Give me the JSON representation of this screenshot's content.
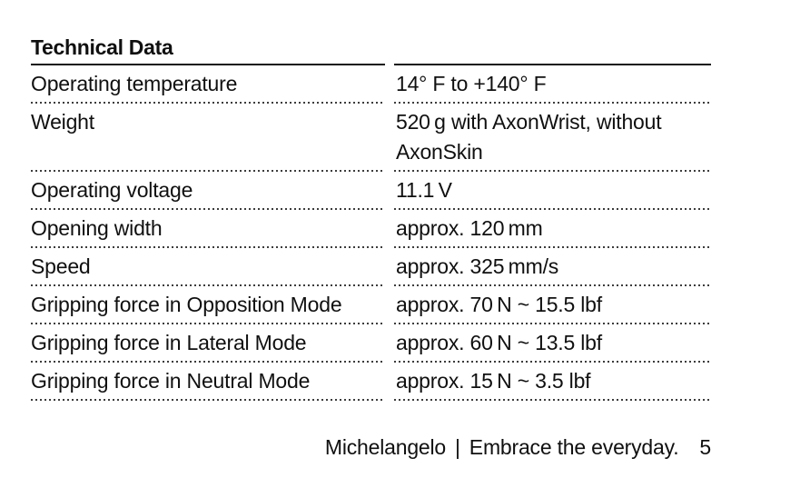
{
  "page": {
    "title": "Technical Data",
    "table": {
      "rows": [
        {
          "label": "Operating temperature",
          "value": "14° F to +140° F"
        },
        {
          "label": "Weight",
          "value": "520 g with AxonWrist, without AxonSkin"
        },
        {
          "label": "Operating voltage",
          "value": "11.1 V"
        },
        {
          "label": "Opening width",
          "value": "approx. 120 mm"
        },
        {
          "label": "Speed",
          "value": "approx. 325 mm/s"
        },
        {
          "label": "Gripping force in Opposition Mode",
          "value": "approx. 70 N ~ 15.5 lbf"
        },
        {
          "label": "Gripping force in Lateral Mode",
          "value": "approx. 60 N ~ 13.5 lbf"
        },
        {
          "label": "Gripping force in Neutral Mode",
          "value": "approx. 15 N ~ 3.5 lbf"
        }
      ]
    },
    "footer": {
      "brand": "Michelangelo",
      "separator": "|",
      "tagline": "Embrace the everyday.",
      "page_number": "5"
    },
    "colors": {
      "background": "#ffffff",
      "text": "#101010",
      "solid_rule": "#151515",
      "dotted_rule": "#3c3c3c"
    }
  }
}
